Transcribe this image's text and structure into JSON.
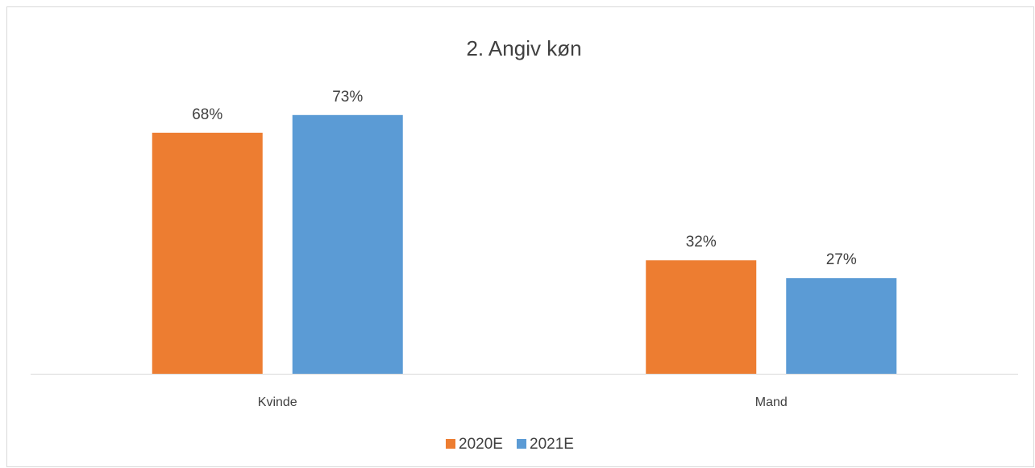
{
  "chart_data": {
    "type": "bar",
    "title": "2. Angiv køn",
    "categories": [
      "Kvinde",
      "Mand"
    ],
    "series": [
      {
        "name": "2020E",
        "color": "#ed7d31",
        "values": [
          68,
          32
        ],
        "value_labels": [
          "68%",
          "32%"
        ]
      },
      {
        "name": "2021E",
        "color": "#5b9bd5",
        "values": [
          73,
          27
        ],
        "value_labels": [
          "73%",
          "27%"
        ]
      }
    ],
    "ylim": [
      0,
      80
    ],
    "grid": false,
    "legend": "bottom"
  }
}
